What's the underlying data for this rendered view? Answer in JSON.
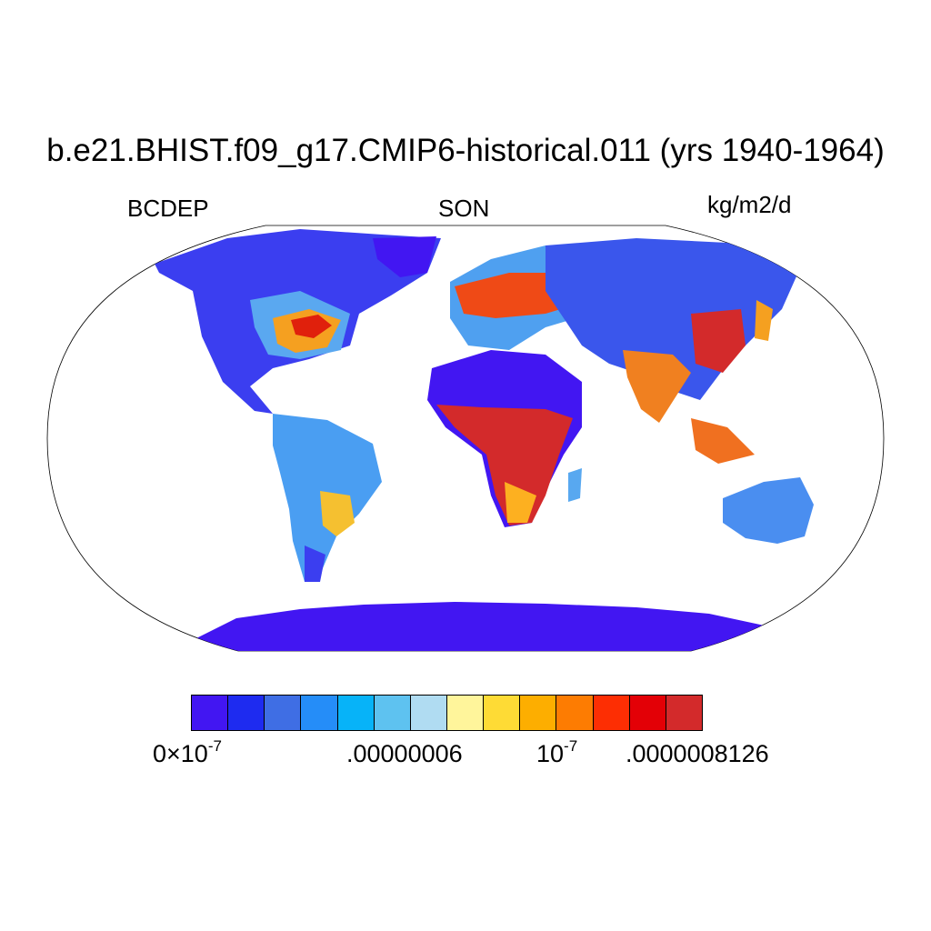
{
  "title": "b.e21.BHIST.f09_g17.CMIP6-historical.011 (yrs 1940-1964)",
  "variable": "BCDEP",
  "season": "SON",
  "units": "kg/m2/d",
  "colorbar": {
    "colors": [
      "#4216f2",
      "#1e2bf0",
      "#3f6ee4",
      "#258df8",
      "#07b3f8",
      "#5ec2f0",
      "#b0dcf2",
      "#fff59b",
      "#fedb35",
      "#fdae00",
      "#fd7c02",
      "#fd2e03",
      "#e30006",
      "#d32a2b"
    ],
    "tick_labels": {
      "t0_base": "0×10",
      "t0_exp": "-7",
      "t1": ".00000006",
      "t2_base": "10",
      "t2_exp": "-7",
      "t3": ".0000008126"
    }
  }
}
